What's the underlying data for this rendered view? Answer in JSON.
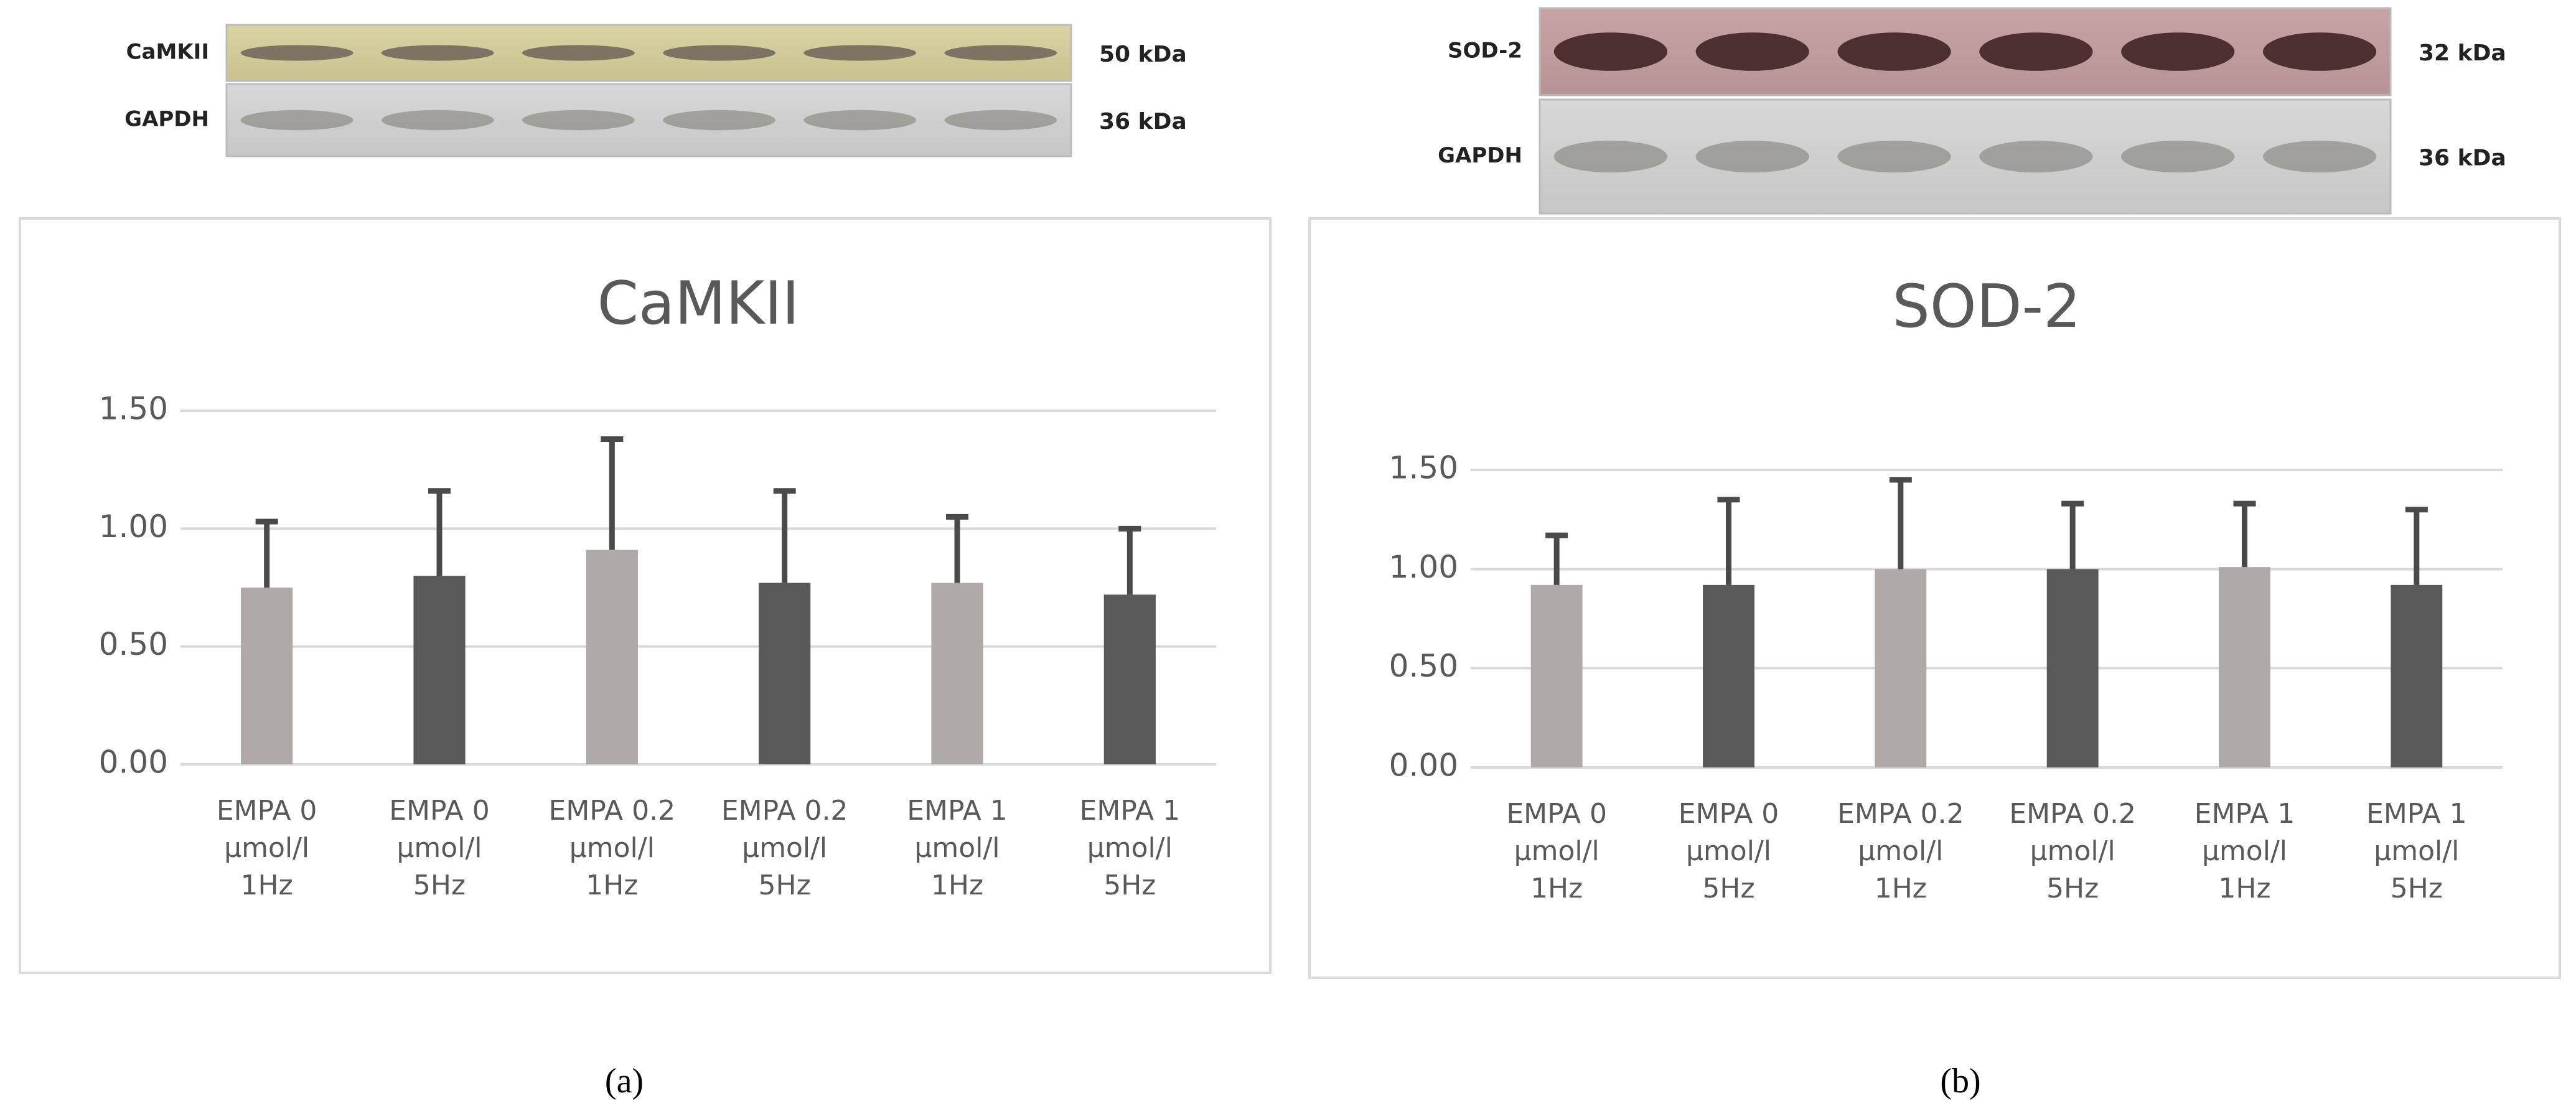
{
  "chart_data": [
    {
      "type": "bar",
      "title": "CaMKII",
      "blot": {
        "labels": [
          "CaMKII",
          "GAPDH"
        ],
        "sizes": [
          "50 kDa",
          "36 kDa"
        ]
      },
      "panel_label": "(a)",
      "categories": [
        "EMPA 0 µmol/l 1Hz",
        "EMPA 0 µmol/l 5Hz",
        "EMPA 0.2 µmol/l 1Hz",
        "EMPA 0.2 µmol/l 5Hz",
        "EMPA 1 µmol/l 1Hz",
        "EMPA 1 µmol/l 5Hz"
      ],
      "values": [
        0.75,
        0.8,
        0.91,
        0.77,
        0.77,
        0.72
      ],
      "errors": [
        0.28,
        0.36,
        0.47,
        0.39,
        0.28,
        0.28
      ],
      "colors": [
        "#afaaa8",
        "#595959",
        "#afaaa8",
        "#595959",
        "#afaaa8",
        "#595959"
      ],
      "error_color": "#4a4a4a",
      "ylim": [
        0,
        1.5
      ],
      "yticks": [
        {
          "value": 0,
          "label": "0.00"
        },
        {
          "value": 0.5,
          "label": "0.50"
        },
        {
          "value": 1,
          "label": "1.00"
        },
        {
          "value": 1.5,
          "label": "1.50"
        }
      ],
      "grid": true
    },
    {
      "type": "bar",
      "title": "SOD-2",
      "blot": {
        "labels": [
          "SOD-2",
          "GAPDH"
        ],
        "sizes": [
          "32 kDa",
          "36 kDa"
        ]
      },
      "panel_label": "(b)",
      "categories": [
        "EMPA 0 µmol/l 1Hz",
        "EMPA 0 µmol/l 5Hz",
        "EMPA 0.2 µmol/l 1Hz",
        "EMPA 0.2 µmol/l 5Hz",
        "EMPA 1 µmol/l 1Hz",
        "EMPA 1 µmol/l 5Hz"
      ],
      "values": [
        0.92,
        0.92,
        1.0,
        1.0,
        1.01,
        0.92
      ],
      "errors": [
        0.25,
        0.43,
        0.45,
        0.33,
        0.32,
        0.38
      ],
      "colors": [
        "#afaaa8",
        "#595959",
        "#afaaa8",
        "#595959",
        "#afaaa8",
        "#595959"
      ],
      "error_color": "#4a4a4a",
      "ylim": [
        0,
        1.5
      ],
      "yticks": [
        {
          "value": 0,
          "label": "0.00"
        },
        {
          "value": 0.5,
          "label": "0.50"
        },
        {
          "value": 1,
          "label": "1.00"
        },
        {
          "value": 1.5,
          "label": "1.50"
        }
      ],
      "grid": true
    }
  ]
}
